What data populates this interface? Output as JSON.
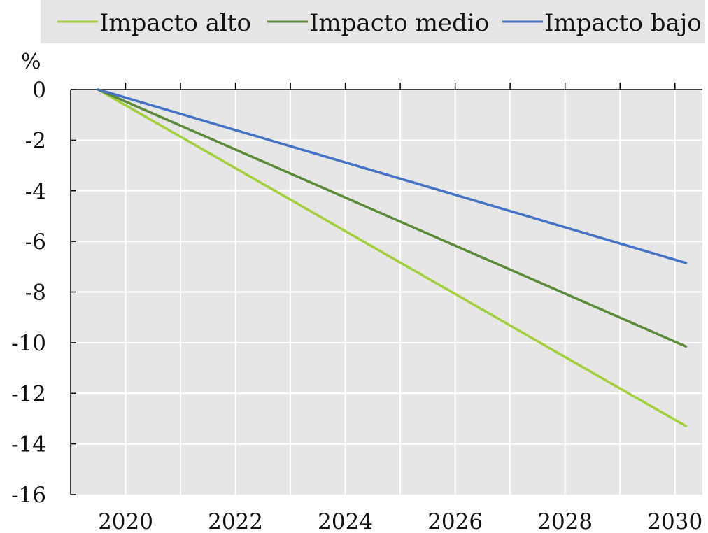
{
  "chart_data": {
    "type": "line",
    "title": "",
    "xlabel": "",
    "ylabel": "%",
    "x_ticks": [
      "2020",
      "2022",
      "2024",
      "2026",
      "2028",
      "2030"
    ],
    "y_ticks": [
      "0",
      "-2",
      "-4",
      "-6",
      "-8",
      "-10",
      "-12",
      "-14",
      "-16"
    ],
    "xlim": [
      2019,
      2030.5
    ],
    "ylim": [
      -16,
      0
    ],
    "grid": true,
    "legend_position": "top",
    "series": [
      {
        "name": "Impacto alto",
        "color": "#a3cf3a",
        "x": [
          2019.5,
          2030.2
        ],
        "y": [
          0,
          -13.3
        ]
      },
      {
        "name": "Impacto medio",
        "color": "#5a8a3a",
        "x": [
          2019.5,
          2030.2
        ],
        "y": [
          0,
          -10.15
        ]
      },
      {
        "name": "Impacto bajo",
        "color": "#4472c4",
        "x": [
          2019.5,
          2030.2
        ],
        "y": [
          0,
          -6.85
        ]
      }
    ]
  }
}
